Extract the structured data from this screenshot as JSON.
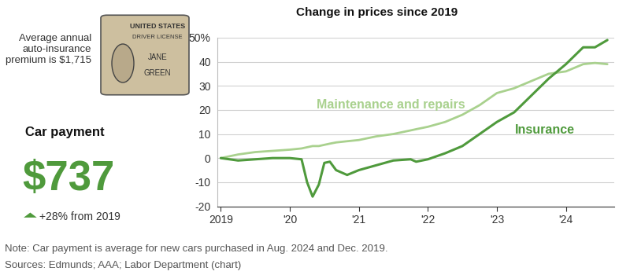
{
  "chart_data": {
    "type": "line",
    "title": "Change in prices since 2019",
    "x": [
      2019.0,
      2019.25,
      2019.5,
      2019.75,
      2020.0,
      2020.17,
      2020.25,
      2020.33,
      2020.42,
      2020.5,
      2020.58,
      2020.67,
      2020.83,
      2021.0,
      2021.25,
      2021.5,
      2021.75,
      2021.83,
      2022.0,
      2022.25,
      2022.5,
      2022.75,
      2023.0,
      2023.25,
      2023.5,
      2023.75,
      2024.0,
      2024.25,
      2024.42,
      2024.6
    ],
    "series": [
      {
        "name": "Maintenance and repairs",
        "color": "#a9d18e",
        "values": [
          0,
          1.5,
          2.5,
          3,
          3.5,
          4,
          4.5,
          5,
          5,
          5.5,
          6,
          6.5,
          7,
          7.5,
          9,
          10,
          11.5,
          12,
          13,
          15,
          18,
          22,
          27,
          29,
          32,
          35,
          36,
          39,
          39.5,
          39
        ]
      },
      {
        "name": "Insurance",
        "color": "#4f9a3c",
        "values": [
          0,
          -1,
          -0.5,
          0,
          0,
          -0.5,
          -10,
          -16,
          -11,
          -2,
          -1.5,
          -5,
          -7,
          -5,
          -3,
          -1,
          -0.5,
          -1.5,
          -0.5,
          2,
          5,
          10,
          15,
          19,
          26,
          33,
          39,
          46,
          46,
          49
        ]
      }
    ],
    "xlim": [
      2018.95,
      2024.7
    ],
    "xticks": [
      {
        "value": 2019,
        "label": "2019"
      },
      {
        "value": 2020,
        "label": "'20"
      },
      {
        "value": 2021,
        "label": "'21"
      },
      {
        "value": 2022,
        "label": "'22"
      },
      {
        "value": 2023,
        "label": "'23"
      },
      {
        "value": 2024,
        "label": "'24"
      }
    ],
    "ylim": [
      -20,
      50
    ],
    "yticks": [
      -20,
      -10,
      0,
      10,
      20,
      30,
      40,
      {
        "value": 50,
        "label": "50%"
      }
    ],
    "grid": true
  },
  "sidebar": {
    "premium_lines": [
      "Average annual",
      "auto-insurance",
      "premium is $1,715"
    ],
    "card_texts": [
      "UNITED STATES",
      "DRIVER LICENSE",
      "JANE",
      "GREEN"
    ],
    "car_payment_label": "Car payment",
    "car_payment_value": "$737",
    "car_payment_color": "#4f9a3c",
    "car_payment_change": "+28% from 2019"
  },
  "footer": [
    "Note: Car payment is average for new cars purchased in Aug. 2024 and Dec. 2019.",
    "Sources: Edmunds; AAA; Labor Department (chart)"
  ]
}
